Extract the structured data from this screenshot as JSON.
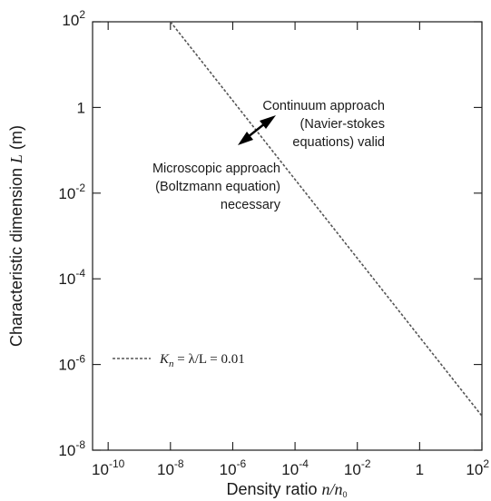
{
  "chart_data": {
    "type": "line",
    "x_scale": "log",
    "y_scale": "log",
    "xlim": [
      3.16e-11,
      100
    ],
    "ylim": [
      1e-08,
      100
    ],
    "x_ticks": [
      {
        "value": 1e-10,
        "base": "10",
        "exp": "-10"
      },
      {
        "value": 1e-08,
        "base": "10",
        "exp": "-8"
      },
      {
        "value": 1e-06,
        "base": "10",
        "exp": "-6"
      },
      {
        "value": 0.0001,
        "base": "10",
        "exp": "-4"
      },
      {
        "value": 0.01,
        "base": "10",
        "exp": "-2"
      },
      {
        "value": 1,
        "base": "1",
        "exp": ""
      },
      {
        "value": 100,
        "base": "10",
        "exp": "2"
      }
    ],
    "y_ticks": [
      {
        "value": 1e-08,
        "base": "10",
        "exp": "-8"
      },
      {
        "value": 1e-06,
        "base": "10",
        "exp": "-6"
      },
      {
        "value": 0.0001,
        "base": "10",
        "exp": "-4"
      },
      {
        "value": 0.01,
        "base": "10",
        "exp": "-2"
      },
      {
        "value": 1,
        "base": "1",
        "exp": ""
      },
      {
        "value": 100,
        "base": "10",
        "exp": "2"
      }
    ],
    "xlabel": {
      "text": "Density ratio ",
      "math_n": "n",
      "math_slash": "/",
      "math_n0": "n",
      "math_sub": "0"
    },
    "ylabel": {
      "text": "Characteristic dimension ",
      "math": "L",
      "unit": " (m)"
    },
    "series": [
      {
        "name": "Kn = λ/L = 0.01",
        "style": "dashed",
        "color": "#555555",
        "x": [
          1e-08,
          100
        ],
        "y": [
          100,
          6.3e-08
        ]
      }
    ],
    "legend": {
      "placement": "lower-left",
      "K": "K",
      "n": "n",
      "rest": " = λ/L = 0.01"
    },
    "annotations": {
      "continuum": [
        "Continuum approach",
        "(Navier-stokes",
        "equations) valid"
      ],
      "microscopic": [
        "Microscopic approach",
        "(Boltzmann equation)",
        "necessary"
      ]
    },
    "grid": false,
    "colors": {
      "axis": "#1a1a1a",
      "line": "#555555"
    }
  }
}
